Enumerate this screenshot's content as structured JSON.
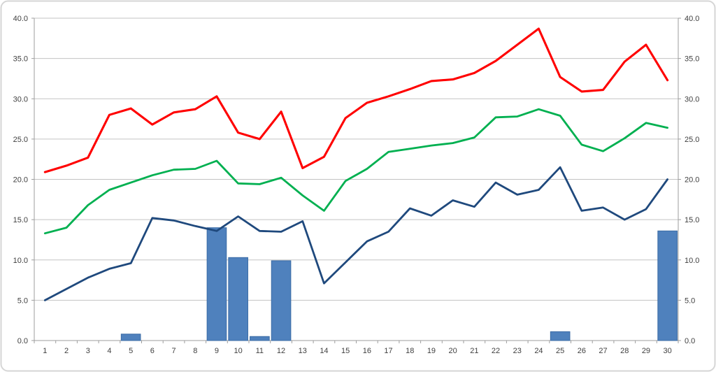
{
  "chart_data": {
    "type": "combo",
    "title": "",
    "xlabel": "",
    "ylabel": "",
    "legend": "none",
    "grid": true,
    "categories": [
      "1",
      "2",
      "3",
      "4",
      "5",
      "6",
      "7",
      "8",
      "9",
      "10",
      "11",
      "12",
      "13",
      "14",
      "15",
      "16",
      "17",
      "18",
      "19",
      "20",
      "21",
      "22",
      "23",
      "24",
      "25",
      "26",
      "27",
      "28",
      "29",
      "30"
    ],
    "series": [
      {
        "name": "volume-bars",
        "type": "bar",
        "color": "#4F81BD",
        "border_color": "#3A6BA5",
        "values": [
          0,
          0,
          0,
          0,
          0.8,
          0,
          0,
          0,
          14.0,
          10.3,
          0.5,
          9.9,
          0,
          0,
          0,
          0,
          0,
          0,
          0,
          0,
          0,
          0,
          0,
          0,
          1.1,
          0,
          0,
          0,
          0,
          13.6
        ]
      },
      {
        "name": "red-line",
        "type": "line",
        "color": "#FF0000",
        "values": [
          20.9,
          21.7,
          22.7,
          28.0,
          28.8,
          26.8,
          28.3,
          28.7,
          30.3,
          25.8,
          25.0,
          28.4,
          21.4,
          22.8,
          27.6,
          29.5,
          30.3,
          31.2,
          32.2,
          32.4,
          33.2,
          34.7,
          36.7,
          38.7,
          32.7,
          30.9,
          31.1,
          34.6,
          36.7,
          32.3
        ]
      },
      {
        "name": "green-line",
        "type": "line",
        "color": "#00B050",
        "values": [
          13.3,
          14.0,
          16.8,
          18.7,
          19.6,
          20.5,
          21.2,
          21.3,
          22.3,
          19.5,
          19.4,
          20.2,
          18.0,
          16.1,
          19.8,
          21.3,
          23.4,
          23.8,
          24.2,
          24.5,
          25.2,
          27.7,
          27.8,
          28.7,
          27.9,
          24.3,
          23.5,
          25.1,
          27.0,
          26.4
        ]
      },
      {
        "name": "blue-line",
        "type": "line",
        "color": "#1F497D",
        "values": [
          5.0,
          6.4,
          7.8,
          8.9,
          9.6,
          15.2,
          14.9,
          14.2,
          13.6,
          15.4,
          13.6,
          13.5,
          14.8,
          7.1,
          9.7,
          12.3,
          13.5,
          16.4,
          15.5,
          17.4,
          16.6,
          19.6,
          18.1,
          18.7,
          21.5,
          16.1,
          16.5,
          15.0,
          16.3,
          20.0
        ]
      }
    ],
    "y_axis_left": {
      "min": 0,
      "max": 40,
      "step": 5,
      "tick_labels": [
        "0.0",
        "5.0",
        "10.0",
        "15.0",
        "20.0",
        "25.0",
        "30.0",
        "35.0",
        "40.0"
      ]
    },
    "y_axis_right": {
      "min": 0,
      "max": 40,
      "step": 5,
      "tick_labels": [
        "0.0",
        "5.0",
        "10.0",
        "15.0",
        "20.0",
        "25.0",
        "30.0",
        "35.0",
        "40.0"
      ]
    },
    "x_axis": {
      "tick_labels": [
        "1",
        "2",
        "3",
        "4",
        "5",
        "6",
        "7",
        "8",
        "9",
        "10",
        "11",
        "12",
        "13",
        "14",
        "15",
        "16",
        "17",
        "18",
        "19",
        "20",
        "21",
        "22",
        "23",
        "24",
        "25",
        "26",
        "27",
        "28",
        "29",
        "30"
      ]
    },
    "colors": {
      "background": "#FFFFFF",
      "frame_border": "#D6D6D6",
      "gridline": "#C3C3C3",
      "axis": "#9E9E9E",
      "tick_text": "#404040",
      "bar_fill": "#4F81BD",
      "bar_border": "#3A6BA5"
    }
  }
}
